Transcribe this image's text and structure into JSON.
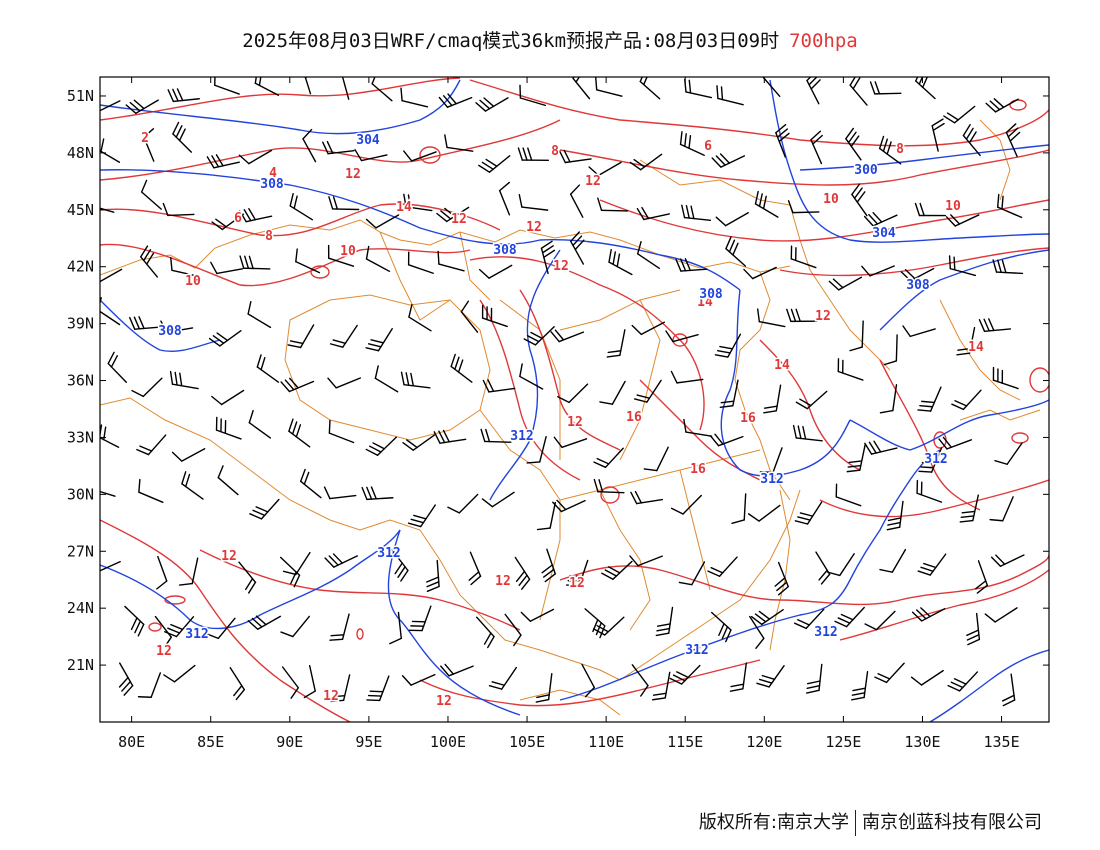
{
  "title": {
    "main": "2025年08月03日WRF/cmaq模式36km预报产品:08月03日09时",
    "level": "700hpa"
  },
  "axes": {
    "x_ticks": [
      "80E",
      "85E",
      "90E",
      "95E",
      "100E",
      "105E",
      "110E",
      "115E",
      "120E",
      "125E",
      "130E",
      "135E"
    ],
    "y_ticks": [
      "51N",
      "48N",
      "45N",
      "42N",
      "39N",
      "36N",
      "33N",
      "30N",
      "27N",
      "24N",
      "21N"
    ]
  },
  "map_extent": {
    "lon_min": 78,
    "lon_max": 138,
    "lat_min": 18,
    "lat_max": 52
  },
  "colors": {
    "temperature": "#e03838",
    "height": "#2244dd",
    "border": "#e08a30",
    "wind": "#000000"
  },
  "chart_data": {
    "type": "contour-map",
    "height_contour_labels": [
      "304",
      "300",
      "304",
      "308",
      "308",
      "308",
      "308",
      "312",
      "308",
      "312",
      "312",
      "312",
      "312",
      "312",
      "312"
    ],
    "temperature_contour_labels": [
      "2",
      "4",
      "6",
      "6",
      "8",
      "8",
      "8",
      "10",
      "10",
      "10",
      "10",
      "12",
      "12",
      "12",
      "12",
      "12",
      "14",
      "14",
      "14",
      "14",
      "16",
      "16",
      "16",
      "12",
      "12",
      "12",
      "12",
      "12",
      "12",
      "12",
      "12"
    ]
  },
  "footer": {
    "left": "版权所有:南京大学",
    "right": "南京创蓝科技有限公司"
  }
}
